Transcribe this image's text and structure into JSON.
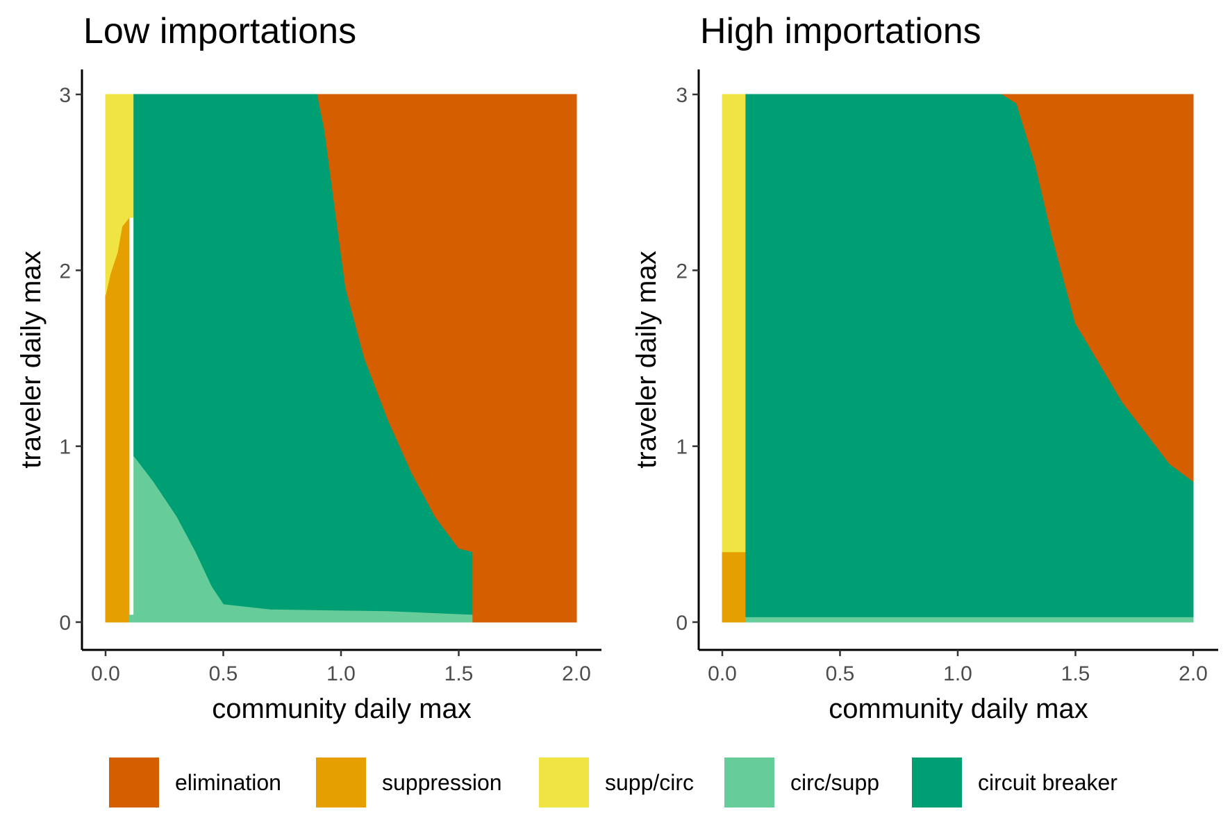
{
  "colors": {
    "elimination": "#D55E00",
    "suppression": "#E69F00",
    "supp_circ": "#F0E442",
    "circ_supp": "#66CC99",
    "circuit_breaker": "#009E73"
  },
  "legend": {
    "items": [
      {
        "key": "elimination",
        "label": "elimination",
        "color": "#D55E00"
      },
      {
        "key": "suppression",
        "label": "suppression",
        "color": "#E69F00"
      },
      {
        "key": "supp_circ",
        "label": "supp/circ",
        "color": "#F0E442"
      },
      {
        "key": "circ_supp",
        "label": "circ/supp",
        "color": "#66CC99"
      },
      {
        "key": "circuit_breaker",
        "label": "circuit breaker",
        "color": "#009E73"
      }
    ]
  },
  "chart_data": [
    {
      "type": "heatmap",
      "title": "Low importations",
      "xlabel": "community daily max",
      "ylabel": "traveler daily max",
      "xlim": [
        0,
        2
      ],
      "ylim": [
        0,
        3
      ],
      "xticks": [
        "0.0",
        "0.5",
        "1.0",
        "1.5",
        "2.0"
      ],
      "yticks": [
        "0",
        "1",
        "2",
        "3"
      ],
      "xtick_values": [
        0,
        0.5,
        1.0,
        1.5,
        2.0
      ],
      "ytick_values": [
        0,
        1,
        2,
        3
      ],
      "regions": [
        {
          "category": "suppression",
          "polygon": [
            [
              0,
              0
            ],
            [
              0.1,
              0
            ],
            [
              0.1,
              2.3
            ],
            [
              0.07,
              2.25
            ],
            [
              0.05,
              2.1
            ],
            [
              0.02,
              1.98
            ],
            [
              0,
              1.86
            ]
          ]
        },
        {
          "category": "supp_circ",
          "polygon": [
            [
              0,
              1.86
            ],
            [
              0.02,
              1.98
            ],
            [
              0.05,
              2.1
            ],
            [
              0.07,
              2.25
            ],
            [
              0.1,
              2.3
            ],
            [
              0.12,
              2.3
            ],
            [
              0.12,
              3
            ],
            [
              0,
              3
            ]
          ]
        },
        {
          "category": "circuit_breaker",
          "polygon": [
            [
              0.12,
              3
            ],
            [
              0.9,
              3
            ],
            [
              0.93,
              2.8
            ],
            [
              0.97,
              2.4
            ],
            [
              1.02,
              1.9
            ],
            [
              1.1,
              1.5
            ],
            [
              1.2,
              1.15
            ],
            [
              1.3,
              0.85
            ],
            [
              1.4,
              0.6
            ],
            [
              1.5,
              0.42
            ],
            [
              1.56,
              0.4
            ],
            [
              1.56,
              0.04
            ],
            [
              1.2,
              0.06
            ],
            [
              0.7,
              0.07
            ],
            [
              0.5,
              0.1
            ],
            [
              0.45,
              0.2
            ],
            [
              0.38,
              0.4
            ],
            [
              0.3,
              0.6
            ],
            [
              0.2,
              0.8
            ],
            [
              0.12,
              0.94
            ]
          ]
        },
        {
          "category": "circ_supp",
          "polygon": [
            [
              0.12,
              0.94
            ],
            [
              0.2,
              0.8
            ],
            [
              0.3,
              0.6
            ],
            [
              0.38,
              0.4
            ],
            [
              0.45,
              0.2
            ],
            [
              0.5,
              0.1
            ],
            [
              0.7,
              0.07
            ],
            [
              1.2,
              0.06
            ],
            [
              1.56,
              0.04
            ],
            [
              1.56,
              0
            ],
            [
              0.1,
              0
            ],
            [
              0.1,
              0.04
            ],
            [
              0.12,
              0.04
            ]
          ]
        },
        {
          "category": "elimination",
          "polygon": [
            [
              0.9,
              3
            ],
            [
              2,
              3
            ],
            [
              2,
              0
            ],
            [
              1.56,
              0
            ],
            [
              1.56,
              0.4
            ],
            [
              1.5,
              0.42
            ],
            [
              1.4,
              0.6
            ],
            [
              1.3,
              0.85
            ],
            [
              1.2,
              1.15
            ],
            [
              1.1,
              1.5
            ],
            [
              1.02,
              1.9
            ],
            [
              0.97,
              2.4
            ],
            [
              0.93,
              2.8
            ]
          ]
        }
      ]
    },
    {
      "type": "heatmap",
      "title": "High importations",
      "xlabel": "community daily max",
      "ylabel": "traveler daily max",
      "xlim": [
        0,
        2
      ],
      "ylim": [
        0,
        3
      ],
      "xticks": [
        "0.0",
        "0.5",
        "1.0",
        "1.5",
        "2.0"
      ],
      "yticks": [
        "0",
        "1",
        "2",
        "3"
      ],
      "xtick_values": [
        0,
        0.5,
        1.0,
        1.5,
        2.0
      ],
      "ytick_values": [
        0,
        1,
        2,
        3
      ],
      "regions": [
        {
          "category": "suppression",
          "polygon": [
            [
              0,
              0
            ],
            [
              0.1,
              0
            ],
            [
              0.1,
              0.4
            ],
            [
              0,
              0.4
            ]
          ]
        },
        {
          "category": "supp_circ",
          "polygon": [
            [
              0,
              0.4
            ],
            [
              0.1,
              0.4
            ],
            [
              0.1,
              3
            ],
            [
              0,
              3
            ]
          ]
        },
        {
          "category": "circ_supp",
          "polygon": [
            [
              0.1,
              0
            ],
            [
              2,
              0
            ],
            [
              2,
              0.03
            ],
            [
              0.1,
              0.03
            ]
          ]
        },
        {
          "category": "circuit_breaker",
          "polygon": [
            [
              0.1,
              0.03
            ],
            [
              2,
              0.03
            ],
            [
              2,
              0.8
            ],
            [
              1.9,
              0.9
            ],
            [
              1.7,
              1.25
            ],
            [
              1.5,
              1.7
            ],
            [
              1.4,
              2.2
            ],
            [
              1.33,
              2.6
            ],
            [
              1.25,
              2.95
            ],
            [
              1.19,
              3
            ],
            [
              0.1,
              3
            ]
          ]
        },
        {
          "category": "elimination",
          "polygon": [
            [
              1.19,
              3
            ],
            [
              2,
              3
            ],
            [
              2,
              0.8
            ],
            [
              1.9,
              0.9
            ],
            [
              1.7,
              1.25
            ],
            [
              1.5,
              1.7
            ],
            [
              1.4,
              2.2
            ],
            [
              1.33,
              2.6
            ],
            [
              1.25,
              2.95
            ]
          ]
        }
      ]
    }
  ]
}
